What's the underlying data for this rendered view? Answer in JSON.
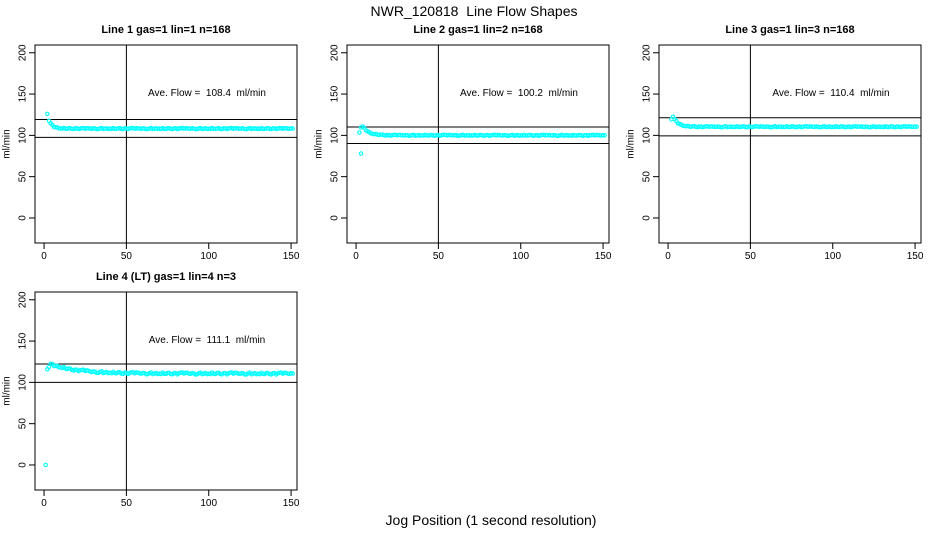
{
  "figure": {
    "title": "NWR_120818  Line Flow Shapes",
    "xlabel": "Jog Position (1 second resolution)",
    "background": "#ffffff",
    "axis_color": "#000000",
    "point_color": "#00ffff"
  },
  "axes": {
    "ylab": "ml/min",
    "x_ticks": [
      0,
      50,
      100,
      150
    ],
    "y_ticks": [
      0,
      50,
      100,
      150,
      200
    ],
    "x_range": [
      -5.5,
      153.6
    ],
    "y_range": [
      -30.3,
      209.4
    ]
  },
  "noise_pattern": [
    0.43,
    -0.28,
    0.71,
    -0.62,
    0.18,
    0.92,
    -0.81,
    0.07,
    -0.45,
    0.6,
    -0.15,
    0.83,
    -0.7,
    0.32,
    -0.95,
    0.5,
    0.02,
    -0.55,
    1.0,
    -0.12,
    0.38,
    -0.77,
    0.64,
    -0.35,
    0.9,
    -0.05,
    0.47,
    -0.88,
    0.25,
    -0.52
  ],
  "chart_data": [
    {
      "type": "scatter",
      "title": "Line 1 gas=1 lin=1 n=168",
      "annotation": "Ave. Flow =  108.4  ml/min",
      "ave_flow_ml_min": 108.4,
      "gas": 1,
      "lin": 1,
      "n": 168,
      "vline_x": 50,
      "hlines_y": [
        119.2,
        97.6
      ],
      "series": {
        "x_end": 151,
        "noise_amp": 0.6,
        "profile": [
          [
            3,
            118
          ],
          [
            4,
            114.4
          ],
          [
            5,
            112.2
          ],
          [
            6,
            110.7
          ],
          [
            7,
            109.8
          ],
          [
            8,
            109.2
          ],
          [
            10,
            108.6
          ],
          [
            13,
            108.3
          ],
          [
            20,
            108.2
          ],
          [
            151,
            108.2
          ]
        ],
        "outliers": [
          [
            2,
            126
          ]
        ]
      }
    },
    {
      "type": "scatter",
      "title": "Line 2 gas=1 lin=2 n=168",
      "annotation": "Ave. Flow =  100.2  ml/min",
      "ave_flow_ml_min": 100.2,
      "gas": 1,
      "lin": 2,
      "n": 168,
      "vline_x": 50,
      "hlines_y": [
        110.2,
        90.2
      ],
      "series": {
        "x_end": 151,
        "noise_amp": 0.55,
        "profile": [
          [
            2,
            104
          ],
          [
            3,
            110
          ],
          [
            4,
            110.5
          ],
          [
            5,
            108.8
          ],
          [
            6,
            106.5
          ],
          [
            8,
            103.5
          ],
          [
            10,
            102
          ],
          [
            14,
            100.7
          ],
          [
            20,
            100.1
          ],
          [
            151,
            100
          ]
        ],
        "outliers": [
          [
            3,
            78
          ]
        ]
      }
    },
    {
      "type": "scatter",
      "title": "Line 3 gas=1 lin=3 n=168",
      "annotation": "Ave. Flow =  110.4  ml/min",
      "ave_flow_ml_min": 110.4,
      "gas": 1,
      "lin": 3,
      "n": 168,
      "vline_x": 50,
      "hlines_y": [
        121.4,
        99.4
      ],
      "series": {
        "x_end": 151,
        "noise_amp": 0.55,
        "profile": [
          [
            2,
            120
          ],
          [
            3,
            123
          ],
          [
            4,
            119.5
          ],
          [
            5,
            116.9
          ],
          [
            6,
            114.9
          ],
          [
            8,
            112.7
          ],
          [
            10,
            111.5
          ],
          [
            13,
            110.8
          ],
          [
            20,
            110.4
          ],
          [
            151,
            110.4
          ]
        ],
        "outliers": []
      }
    },
    {
      "type": "scatter",
      "title": "Line 4 (LT) gas=1 lin=4 n=3",
      "annotation": "Ave. Flow =  111.1  ml/min",
      "ave_flow_ml_min": 111.1,
      "gas": 1,
      "lin": 4,
      "n": 3,
      "vline_x": 50,
      "hlines_y": [
        122.2,
        100.0
      ],
      "series": {
        "x_end": 151,
        "noise_amp": 1.2,
        "profile": [
          [
            2,
            117
          ],
          [
            3,
            119.5
          ],
          [
            4,
            122
          ],
          [
            6,
            120.7
          ],
          [
            10,
            118.4
          ],
          [
            15,
            116.2
          ],
          [
            20,
            114.8
          ],
          [
            30,
            112.8
          ],
          [
            40,
            111.8
          ],
          [
            50,
            111.2
          ],
          [
            70,
            110.8
          ],
          [
            100,
            110.7
          ],
          [
            151,
            110.6
          ]
        ],
        "outliers": [
          [
            1,
            0
          ]
        ]
      }
    }
  ]
}
